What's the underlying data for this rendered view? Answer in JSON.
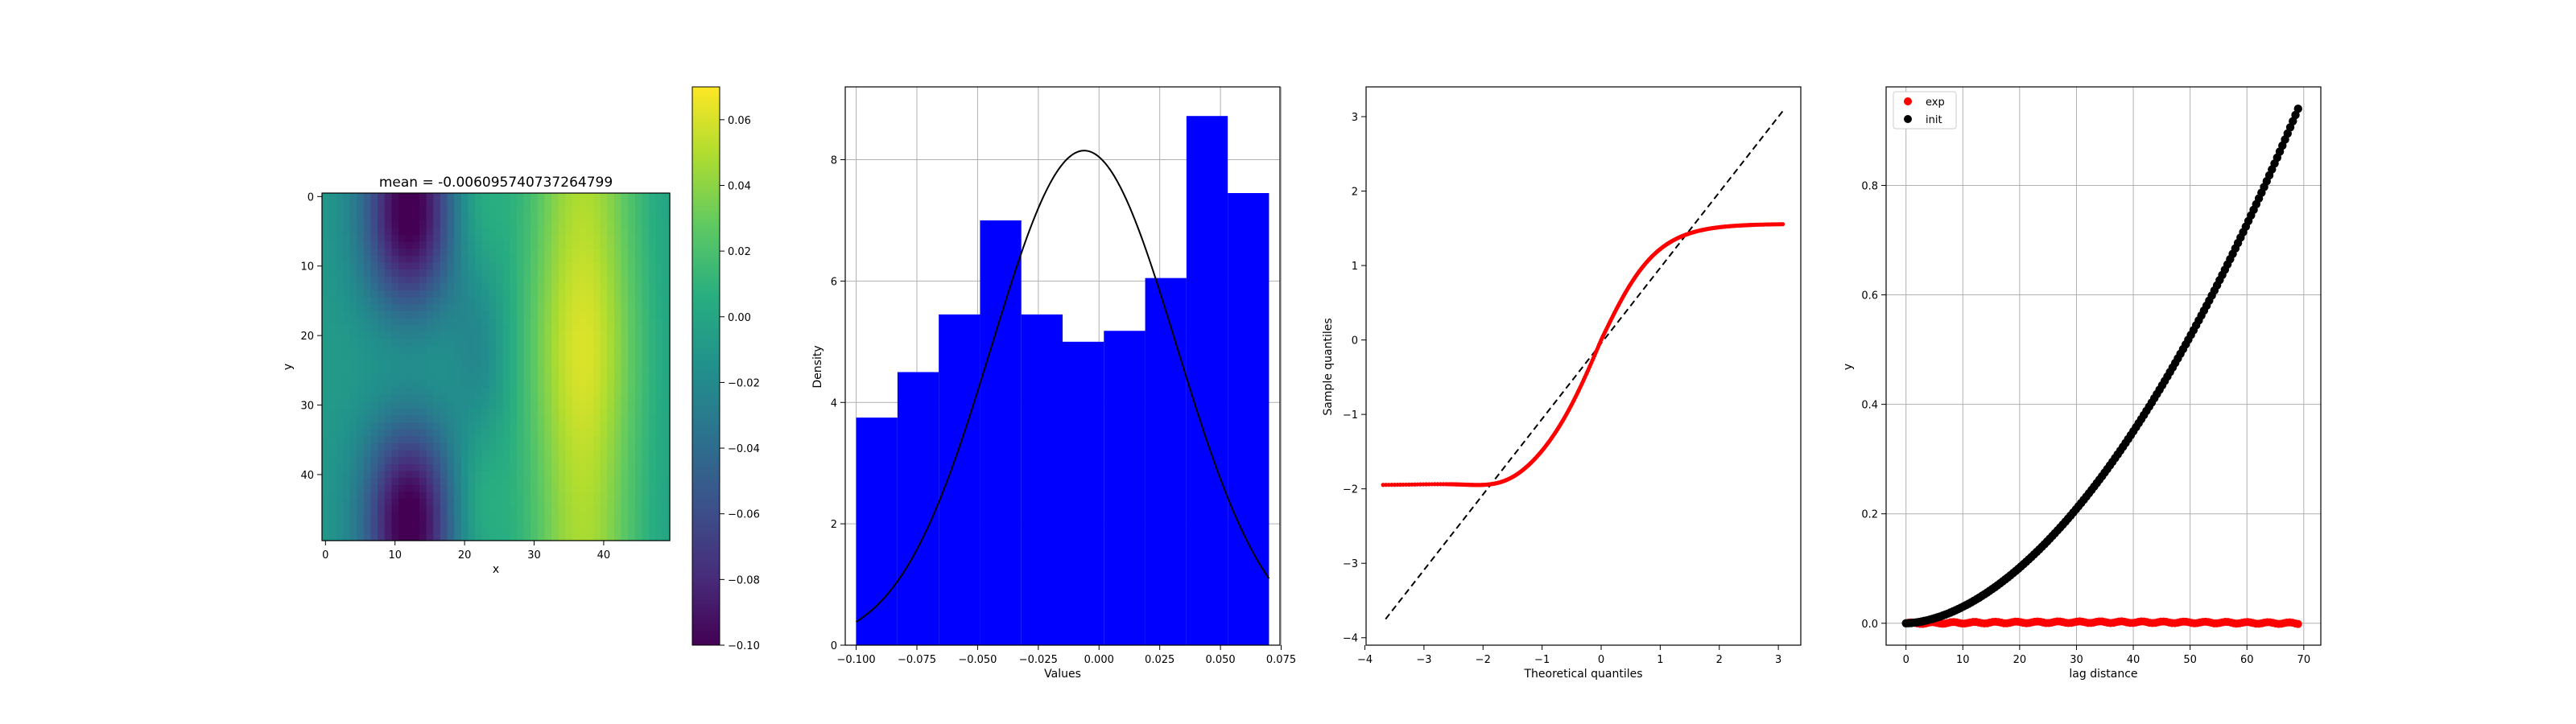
{
  "chart_data": [
    {
      "type": "heatmap",
      "title": "mean = -0.006095740737264799",
      "xlabel": "x",
      "ylabel": "y",
      "xlim": [
        -0.5,
        49.5
      ],
      "ylim": [
        49.5,
        -0.5
      ],
      "xticks": [
        0,
        10,
        20,
        30,
        40
      ],
      "yticks": [
        0,
        10,
        20,
        30,
        40
      ],
      "grid": 50,
      "colormap": "viridis",
      "vmin": -0.1,
      "vmax": 0.07,
      "colorbar_ticks": [
        -0.1,
        -0.08,
        -0.06,
        -0.04,
        -0.02,
        0.0,
        0.02,
        0.04,
        0.06
      ]
    },
    {
      "type": "bar",
      "xlabel": "Values",
      "ylabel": "Density",
      "xlim": [
        -0.1045,
        0.0745
      ],
      "ylim": [
        0,
        9.2
      ],
      "xticks": [
        -0.1,
        -0.075,
        -0.05,
        -0.025,
        0.0,
        0.025,
        0.05,
        0.075
      ],
      "xtick_labels": [
        "−0.100",
        "−0.075",
        "−0.050",
        "−0.025",
        "0.000",
        "0.025",
        "0.050",
        "0.075"
      ],
      "yticks": [
        0,
        2,
        4,
        6,
        8
      ],
      "grid": true,
      "bar_color": "#0000ff",
      "bin_edges": [
        -0.1,
        -0.083,
        -0.066,
        -0.049,
        -0.032,
        -0.015,
        0.002,
        0.019,
        0.036,
        0.053,
        0.07
      ],
      "values": [
        3.75,
        4.5,
        5.45,
        7.0,
        5.45,
        5.0,
        5.18,
        6.05,
        8.72,
        7.45
      ],
      "curve": {
        "type": "normal-pdf",
        "mean": -0.0061,
        "peak": 8.15,
        "color": "#000000"
      }
    },
    {
      "type": "scatter",
      "xlabel": "Theoretical quantiles",
      "ylabel": "Sample quantiles",
      "xlim": [
        -3.98,
        3.38
      ],
      "ylim": [
        -4.1,
        3.4
      ],
      "xticks": [
        -4,
        -3,
        -2,
        -1,
        0,
        1,
        2,
        3
      ],
      "yticks": [
        -4,
        -3,
        -2,
        -1,
        0,
        1,
        2,
        3
      ],
      "grid": false,
      "marker_color": "#ff0000",
      "reference_line": {
        "x": [
          -3.65,
          3.1
        ],
        "y": [
          -3.75,
          3.1
        ],
        "style": "dashed",
        "color": "#000000"
      },
      "points_range": [
        -3.7,
        3.1
      ],
      "sample_min": -1.95,
      "sample_max": 1.56
    },
    {
      "type": "scatter",
      "xlabel": "lag distance",
      "ylabel": "y",
      "xlim": [
        -3.5,
        73
      ],
      "ylim": [
        -0.04,
        0.98
      ],
      "xticks": [
        0,
        10,
        20,
        30,
        40,
        50,
        60,
        70
      ],
      "yticks": [
        0.0,
        0.2,
        0.4,
        0.6,
        0.8
      ],
      "grid": true,
      "legend_position": "top-left",
      "series": [
        {
          "name": "exp",
          "color": "#ff0000",
          "x_range": [
            0,
            69
          ],
          "y_approx": 0.002
        },
        {
          "name": "init",
          "color": "#000000",
          "x_range": [
            0,
            69
          ],
          "y_end": 0.94
        }
      ]
    }
  ]
}
